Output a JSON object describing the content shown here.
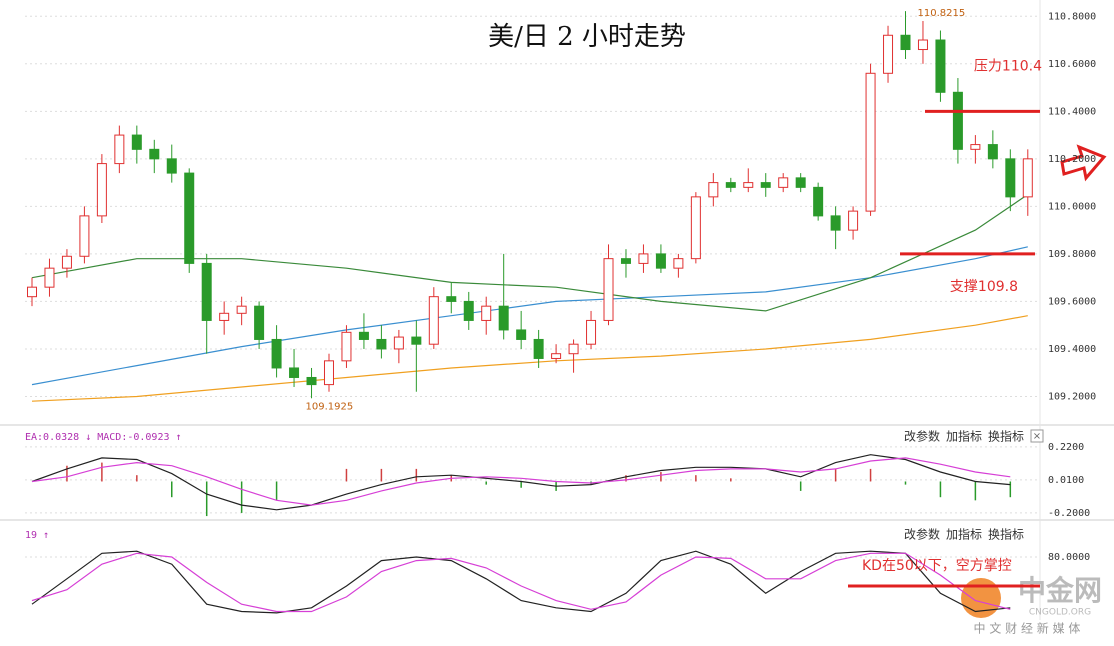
{
  "chart_data": [
    {
      "type": "candlestick",
      "title": "美/日 2 小时走势",
      "open": [
        109.62,
        109.66,
        109.74,
        109.79,
        109.96,
        110.18,
        110.3,
        110.24,
        110.2,
        110.14,
        109.76,
        109.52,
        109.55,
        109.58,
        109.44,
        109.32,
        109.28,
        109.25,
        109.35,
        109.47,
        109.44,
        109.4,
        109.45,
        109.42,
        109.62,
        109.6,
        109.52,
        109.58,
        109.48,
        109.44,
        109.36,
        109.38,
        109.42,
        109.52,
        109.78,
        109.76,
        109.8,
        109.74,
        109.78,
        110.04,
        110.1,
        110.08,
        110.1,
        110.08,
        110.12,
        110.08,
        109.96,
        109.9,
        109.98,
        110.56,
        110.72,
        110.66,
        110.7,
        110.48,
        110.24,
        110.26,
        110.2,
        110.04
      ],
      "high": [
        109.7,
        109.78,
        109.82,
        110.0,
        110.22,
        110.34,
        110.34,
        110.28,
        110.26,
        110.16,
        109.8,
        109.6,
        109.62,
        109.6,
        109.5,
        109.4,
        109.32,
        109.38,
        109.5,
        109.55,
        109.5,
        109.48,
        109.52,
        109.66,
        109.68,
        109.64,
        109.62,
        109.8,
        109.56,
        109.48,
        109.42,
        109.44,
        109.56,
        109.84,
        109.82,
        109.84,
        109.84,
        109.8,
        110.06,
        110.14,
        110.12,
        110.16,
        110.14,
        110.14,
        110.14,
        110.1,
        110.0,
        110.0,
        110.6,
        110.76,
        110.8215,
        110.78,
        110.74,
        110.54,
        110.3,
        110.32,
        110.24,
        110.24
      ],
      "low": [
        109.58,
        109.62,
        109.7,
        109.76,
        109.93,
        110.14,
        110.18,
        110.14,
        110.1,
        109.72,
        109.38,
        109.46,
        109.5,
        109.4,
        109.28,
        109.24,
        109.1925,
        109.22,
        109.32,
        109.4,
        109.36,
        109.34,
        109.22,
        109.4,
        109.55,
        109.48,
        109.46,
        109.44,
        109.4,
        109.32,
        109.34,
        109.3,
        109.4,
        109.5,
        109.7,
        109.72,
        109.72,
        109.7,
        109.76,
        110.0,
        110.06,
        110.06,
        110.04,
        110.06,
        110.06,
        109.94,
        109.82,
        109.86,
        109.96,
        110.52,
        110.62,
        110.6,
        110.44,
        110.18,
        110.18,
        110.16,
        109.98,
        109.96
      ],
      "close": [
        109.66,
        109.74,
        109.79,
        109.96,
        110.18,
        110.3,
        110.24,
        110.2,
        110.14,
        109.76,
        109.52,
        109.55,
        109.58,
        109.44,
        109.32,
        109.28,
        109.25,
        109.35,
        109.47,
        109.44,
        109.4,
        109.45,
        109.42,
        109.62,
        109.6,
        109.52,
        109.58,
        109.48,
        109.44,
        109.36,
        109.38,
        109.42,
        109.52,
        109.78,
        109.76,
        109.8,
        109.74,
        109.78,
        110.04,
        110.1,
        110.08,
        110.1,
        110.08,
        110.12,
        110.08,
        109.96,
        109.9,
        109.98,
        110.56,
        110.72,
        110.66,
        110.7,
        110.48,
        110.24,
        110.26,
        110.2,
        110.04,
        110.2
      ],
      "up_color": "#e03030",
      "down_color": "#2a9a2a",
      "series": [
        {
          "color": "#3a8fd0",
          "x": [
            0,
            6,
            12,
            18,
            24,
            30,
            36,
            42,
            48,
            54,
            57
          ],
          "values": [
            109.25,
            109.33,
            109.41,
            109.48,
            109.54,
            109.6,
            109.62,
            109.64,
            109.7,
            109.78,
            109.83
          ]
        },
        {
          "color": "#f0a020",
          "x": [
            0,
            6,
            12,
            18,
            24,
            30,
            36,
            42,
            48,
            54,
            57
          ],
          "values": [
            109.18,
            109.2,
            109.24,
            109.28,
            109.32,
            109.35,
            109.37,
            109.4,
            109.44,
            109.5,
            109.54
          ]
        },
        {
          "color": "#3a8a3a",
          "x": [
            0,
            6,
            12,
            18,
            24,
            30,
            36,
            42,
            48,
            54,
            57
          ],
          "values": [
            109.7,
            109.78,
            109.78,
            109.74,
            109.68,
            109.66,
            109.6,
            109.56,
            109.7,
            109.9,
            110.05
          ]
        }
      ],
      "high_label": 110.8215,
      "low_label": 109.1925,
      "annotations": [
        {
          "text": "压力110.4",
          "value": 110.4
        },
        {
          "text": "支撑109.8",
          "value": 109.8
        }
      ],
      "ylim": [
        109.08,
        110.86
      ],
      "yticks": [
        {
          "value": 109.2,
          "label": "109.2000"
        },
        {
          "value": 109.4,
          "label": "109.4000"
        },
        {
          "value": 109.6,
          "label": "109.6000"
        },
        {
          "value": 109.8,
          "label": "109.8000"
        },
        {
          "value": 110.0,
          "label": "110.0000"
        },
        {
          "value": 110.2,
          "label": "110.2000"
        },
        {
          "value": 110.4,
          "label": "110.4000"
        },
        {
          "value": 110.6,
          "label": "110.6000"
        },
        {
          "value": 110.8,
          "label": "110.8000"
        }
      ],
      "grid": true
    },
    {
      "type": "macd",
      "header": "EA:0.0328 ↓ MACD:-0.0923 ↑",
      "buttons": [
        "改参数",
        "加指标",
        "换指标"
      ],
      "x": [
        0,
        2,
        4,
        6,
        8,
        10,
        12,
        14,
        16,
        18,
        20,
        22,
        24,
        26,
        28,
        30,
        32,
        34,
        36,
        38,
        40,
        42,
        44,
        46,
        48,
        50,
        52,
        54,
        56
      ],
      "series": [
        {
          "color": "#222222",
          "values": [
            0.0,
            0.08,
            0.15,
            0.14,
            0.05,
            -0.08,
            -0.15,
            -0.18,
            -0.15,
            -0.08,
            -0.02,
            0.03,
            0.04,
            0.02,
            0.0,
            -0.03,
            -0.02,
            0.03,
            0.07,
            0.09,
            0.09,
            0.08,
            0.03,
            0.12,
            0.17,
            0.14,
            0.06,
            0.0,
            -0.02
          ]
        },
        {
          "color": "#d63fd6",
          "values": [
            0.0,
            0.03,
            0.09,
            0.12,
            0.1,
            0.03,
            -0.05,
            -0.12,
            -0.15,
            -0.12,
            -0.06,
            -0.01,
            0.02,
            0.03,
            0.02,
            0.0,
            -0.01,
            0.01,
            0.04,
            0.07,
            0.08,
            0.08,
            0.06,
            0.08,
            0.13,
            0.15,
            0.11,
            0.06,
            0.03
          ]
        }
      ],
      "bars": {
        "up_color": "#d04040",
        "down_color": "#2a9a2a",
        "values": [
          0,
          0.1,
          0.12,
          0.04,
          -0.1,
          -0.22,
          -0.2,
          -0.12,
          0,
          0.08,
          0.08,
          0.08,
          0.04,
          -0.02,
          -0.04,
          -0.06,
          -0.02,
          0.04,
          0.06,
          0.04,
          0.02,
          0,
          -0.06,
          0.08,
          0.08,
          -0.02,
          -0.1,
          -0.12,
          -0.1
        ]
      },
      "ylim": [
        -0.245,
        0.34
      ],
      "yticks": [
        {
          "value": -0.2,
          "label": "-0.2000"
        },
        {
          "value": 0.01,
          "label": "0.0100"
        },
        {
          "value": 0.22,
          "label": "0.2200"
        }
      ]
    },
    {
      "type": "kdj",
      "header": "19 ↑",
      "buttons": [
        "改参数",
        "加指标",
        "换指标"
      ],
      "x": [
        0,
        2,
        4,
        6,
        8,
        10,
        12,
        14,
        16,
        18,
        20,
        22,
        24,
        26,
        28,
        30,
        32,
        34,
        36,
        38,
        40,
        42,
        44,
        46,
        48,
        50,
        52,
        54,
        56
      ],
      "series": [
        {
          "color": "#222222",
          "values": [
            15,
            50,
            85,
            88,
            70,
            15,
            5,
            3,
            10,
            40,
            75,
            80,
            75,
            50,
            20,
            10,
            5,
            30,
            75,
            88,
            70,
            30,
            60,
            85,
            88,
            85,
            30,
            5,
            10
          ]
        },
        {
          "color": "#d63fd6",
          "values": [
            20,
            35,
            70,
            85,
            80,
            45,
            15,
            5,
            5,
            25,
            60,
            75,
            78,
            65,
            40,
            20,
            8,
            18,
            55,
            80,
            78,
            50,
            50,
            75,
            85,
            85,
            55,
            20,
            8
          ]
        }
      ],
      "annotation": {
        "text": "KD在50以下，空方掌控",
        "value": 40
      },
      "ylim": [
        -4,
        124
      ],
      "yticks": [
        {
          "value": 80,
          "label": "80.0000"
        }
      ]
    }
  ],
  "watermark": {
    "name": "中金网",
    "domain": "CNGOLD.ORG",
    "slogan": "中 文 财 经 新 媒 体"
  }
}
